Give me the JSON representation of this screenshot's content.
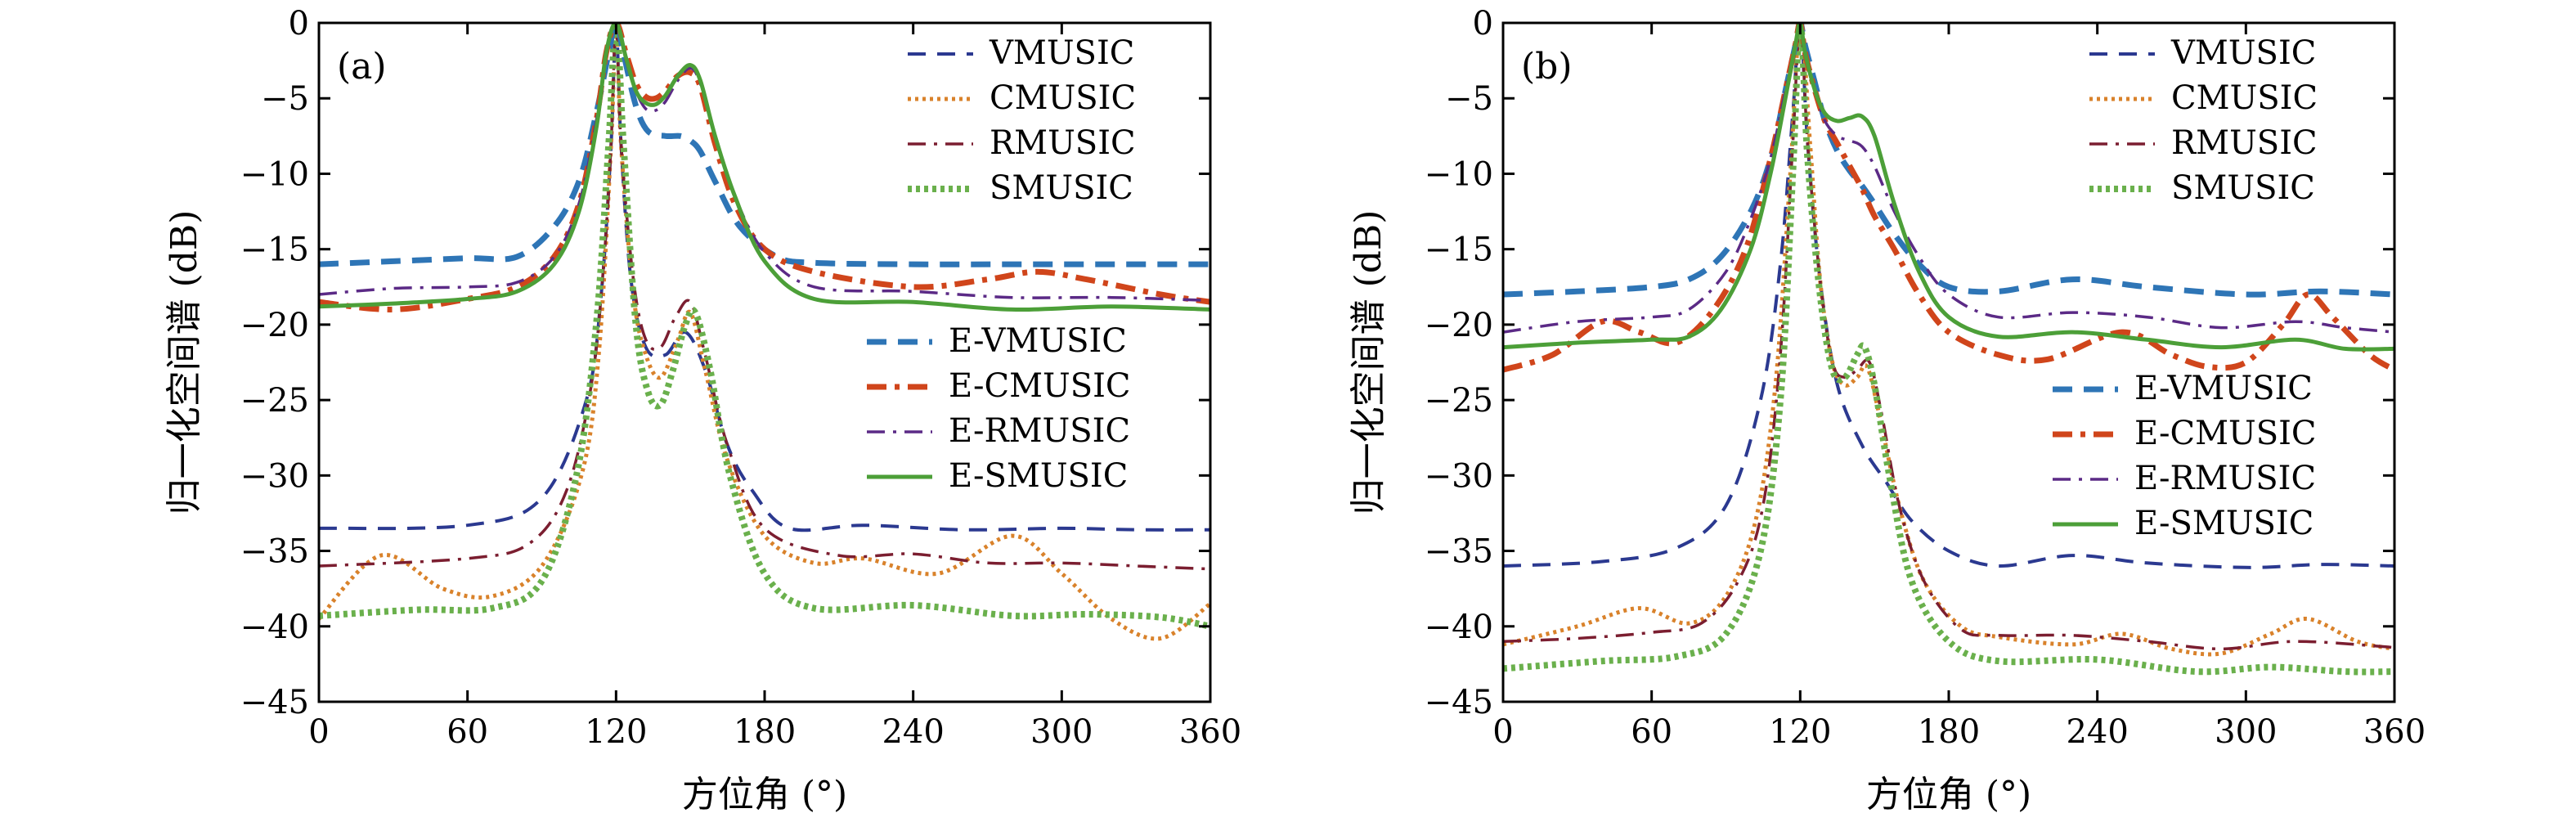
{
  "chart_data": [
    {
      "type": "line",
      "panel_label": "(a)",
      "xlabel": "方位角 (°)",
      "ylabel": "归一化空间谱 (dB)",
      "xlim": [
        0,
        360
      ],
      "ylim": [
        -45,
        0
      ],
      "xticks": [
        0,
        60,
        120,
        180,
        240,
        300,
        360
      ],
      "yticks": [
        0,
        -5,
        -10,
        -15,
        -20,
        -25,
        -30,
        -35,
        -40,
        -45
      ],
      "legends": [
        {
          "placement": "top-right",
          "entries": [
            "VMUSIC",
            "CMUSIC",
            "RMUSIC",
            "SMUSIC"
          ]
        },
        {
          "placement": "center-right",
          "entries": [
            "E-VMUSIC",
            "E-CMUSIC",
            "E-RMUSIC",
            "E-SMUSIC"
          ]
        }
      ],
      "series": [
        {
          "name": "VMUSIC",
          "color": "#2b3990",
          "style": "dashed-thin",
          "x": [
            0,
            60,
            90,
            108,
            114,
            118,
            120,
            122,
            126,
            132,
            140,
            148,
            156,
            165,
            175,
            190,
            220,
            260,
            300,
            330,
            360
          ],
          "y": [
            -33.5,
            -33.3,
            -31.5,
            -25,
            -18,
            -8,
            -0.2,
            -8,
            -17,
            -21.5,
            -22,
            -20.5,
            -23,
            -28,
            -31,
            -33.5,
            -33.3,
            -33.6,
            -33.5,
            -33.6,
            -33.6
          ]
        },
        {
          "name": "CMUSIC",
          "color": "#d9822b",
          "style": "dotted",
          "x": [
            0,
            25,
            50,
            70,
            90,
            106,
            113,
            118,
            120,
            122,
            127,
            132,
            138,
            145,
            150,
            156,
            165,
            180,
            200,
            220,
            250,
            280,
            300,
            320,
            340,
            360
          ],
          "y": [
            -39.5,
            -35.3,
            -37.5,
            -38,
            -36,
            -30,
            -22,
            -8,
            0,
            -8,
            -18,
            -22,
            -23.5,
            -21,
            -19.2,
            -23,
            -29,
            -34,
            -35.8,
            -35.5,
            -36.5,
            -34,
            -36.5,
            -39.5,
            -40.8,
            -38.5
          ]
        },
        {
          "name": "RMUSIC",
          "color": "#7b1e30",
          "style": "dashdot",
          "x": [
            0,
            60,
            85,
            100,
            110,
            115,
            118,
            120,
            122,
            127,
            132,
            138,
            144,
            150,
            156,
            165,
            180,
            210,
            240,
            270,
            300,
            330,
            360
          ],
          "y": [
            -36,
            -35.5,
            -34.5,
            -31,
            -24,
            -16,
            -8,
            0,
            -8,
            -17,
            -21,
            -21.5,
            -19.5,
            -18.5,
            -22,
            -28,
            -33.5,
            -35.3,
            -35.2,
            -35.8,
            -35.8,
            -36,
            -36.2
          ]
        },
        {
          "name": "SMUSIC",
          "color": "#6ab04c",
          "style": "dotted-thick",
          "x": [
            0,
            40,
            70,
            90,
            104,
            112,
            117,
            120,
            123,
            128,
            133,
            138,
            143,
            148,
            152,
            158,
            166,
            180,
            200,
            240,
            280,
            310,
            340,
            360
          ],
          "y": [
            -39.3,
            -38.9,
            -38.8,
            -37,
            -30,
            -20,
            -8,
            0,
            -8,
            -20,
            -24.5,
            -25.3,
            -23,
            -20,
            -19.2,
            -23,
            -30,
            -36.5,
            -38.8,
            -38.6,
            -39.3,
            -39.2,
            -39.4,
            -40
          ]
        },
        {
          "name": "E-VMUSIC",
          "color": "#2e75b6",
          "style": "dashed-thick",
          "x": [
            0,
            30,
            60,
            80,
            95,
            105,
            112,
            117,
            120,
            123,
            128,
            133,
            140,
            146,
            150,
            154,
            160,
            170,
            185,
            200,
            240,
            280,
            320,
            360
          ],
          "y": [
            -16,
            -15.8,
            -15.6,
            -15.5,
            -13.5,
            -10.5,
            -6,
            -2,
            0,
            -2,
            -5.5,
            -7.2,
            -7.5,
            -7.5,
            -7.8,
            -8.5,
            -10.5,
            -13.5,
            -15.5,
            -15.9,
            -16,
            -16,
            -16,
            -16
          ]
        },
        {
          "name": "E-CMUSIC",
          "color": "#d0451b",
          "style": "dashdot-thick",
          "x": [
            0,
            30,
            60,
            80,
            95,
            105,
            112,
            116,
            120,
            124,
            128,
            132,
            136,
            140,
            145,
            150,
            154,
            160,
            168,
            180,
            200,
            240,
            270,
            290,
            310,
            340,
            360
          ],
          "y": [
            -18.5,
            -19,
            -18.3,
            -17.5,
            -15.5,
            -12,
            -6.5,
            -2,
            0,
            -2,
            -4,
            -4.9,
            -5,
            -4.5,
            -3.5,
            -3.3,
            -4.2,
            -8,
            -12,
            -15,
            -16.5,
            -17.5,
            -17,
            -16.5,
            -17,
            -18,
            -18.5
          ]
        },
        {
          "name": "E-RMUSIC",
          "color": "#5b2a86",
          "style": "dashdot",
          "x": [
            0,
            30,
            60,
            80,
            95,
            105,
            112,
            116,
            120,
            124,
            128,
            132,
            136,
            140,
            145,
            150,
            154,
            160,
            168,
            180,
            200,
            240,
            280,
            320,
            360
          ],
          "y": [
            -18,
            -17.6,
            -17.5,
            -17.2,
            -15.5,
            -12,
            -6.5,
            -2,
            0,
            -2.5,
            -4.5,
            -5.7,
            -5.8,
            -5.2,
            -3.8,
            -3,
            -4,
            -7.5,
            -11.5,
            -15.2,
            -17.5,
            -17.8,
            -18.2,
            -18.2,
            -18.4
          ]
        },
        {
          "name": "E-SMUSIC",
          "color": "#4c9f38",
          "style": "solid",
          "x": [
            0,
            30,
            60,
            80,
            95,
            105,
            112,
            116,
            120,
            124,
            128,
            132,
            136,
            140,
            145,
            150,
            154,
            160,
            168,
            180,
            200,
            240,
            280,
            320,
            360
          ],
          "y": [
            -18.8,
            -18.6,
            -18.3,
            -17.8,
            -16,
            -12.5,
            -7,
            -2,
            0,
            -2.3,
            -4.5,
            -5.3,
            -5.4,
            -4.8,
            -3.5,
            -2.8,
            -3.8,
            -7.5,
            -11.5,
            -15.8,
            -18.3,
            -18.5,
            -19,
            -18.8,
            -19
          ]
        }
      ]
    },
    {
      "type": "line",
      "panel_label": "(b)",
      "xlabel": "方位角 (°)",
      "ylabel": "归一化空间谱 (dB)",
      "xlim": [
        0,
        360
      ],
      "ylim": [
        -45,
        0
      ],
      "xticks": [
        0,
        60,
        120,
        180,
        240,
        300,
        360
      ],
      "yticks": [
        0,
        -5,
        -10,
        -15,
        -20,
        -25,
        -30,
        -35,
        -40,
        -45
      ],
      "legends": [
        {
          "placement": "top-right",
          "entries": [
            "VMUSIC",
            "CMUSIC",
            "RMUSIC",
            "SMUSIC"
          ]
        },
        {
          "placement": "center-right",
          "entries": [
            "E-VMUSIC",
            "E-CMUSIC",
            "E-RMUSIC",
            "E-SMUSIC"
          ]
        }
      ],
      "series": [
        {
          "name": "VMUSIC",
          "color": "#2b3990",
          "style": "dashed-thin",
          "x": [
            0,
            40,
            70,
            90,
            104,
            112,
            117,
            120,
            123,
            128,
            135,
            145,
            155,
            165,
            180,
            200,
            230,
            260,
            300,
            330,
            360
          ],
          "y": [
            -36,
            -35.7,
            -34.8,
            -32,
            -25,
            -16,
            -6,
            0,
            -8,
            -17,
            -24,
            -28,
            -30.5,
            -33,
            -35,
            -36,
            -35.3,
            -35.8,
            -36.1,
            -35.9,
            -36
          ]
        },
        {
          "name": "CMUSIC",
          "color": "#d9822b",
          "style": "dotted",
          "x": [
            0,
            30,
            55,
            75,
            90,
            102,
            110,
            116,
            120,
            124,
            128,
            133,
            138,
            143,
            147,
            152,
            160,
            170,
            185,
            200,
            230,
            250,
            270,
            290,
            310,
            325,
            345,
            360
          ],
          "y": [
            -41.2,
            -40,
            -38.8,
            -39.8,
            -38,
            -33,
            -24,
            -10,
            0,
            -8,
            -17,
            -22.5,
            -24,
            -23.5,
            -22.8,
            -26,
            -32,
            -37,
            -40,
            -40.7,
            -41.2,
            -40.5,
            -41.5,
            -41.8,
            -40.5,
            -39.5,
            -41,
            -41.5
          ]
        },
        {
          "name": "RMUSIC",
          "color": "#7b1e30",
          "style": "dashdot",
          "x": [
            0,
            30,
            60,
            80,
            95,
            105,
            112,
            117,
            120,
            123,
            128,
            133,
            138,
            143,
            148,
            153,
            160,
            170,
            185,
            200,
            230,
            260,
            290,
            320,
            360
          ],
          "y": [
            -41,
            -40.8,
            -40.4,
            -39.8,
            -37,
            -32,
            -22,
            -8,
            0,
            -8,
            -17,
            -22.5,
            -23.5,
            -23,
            -22.5,
            -26,
            -32,
            -37,
            -40.2,
            -40.6,
            -40.6,
            -41,
            -41.5,
            -41,
            -41.4
          ]
        },
        {
          "name": "SMUSIC",
          "color": "#6ab04c",
          "style": "dotted-thick",
          "x": [
            0,
            40,
            70,
            90,
            104,
            112,
            117,
            120,
            123,
            128,
            133,
            138,
            143,
            146,
            150,
            156,
            165,
            180,
            200,
            240,
            280,
            310,
            340,
            360
          ],
          "y": [
            -42.8,
            -42.3,
            -42,
            -40.5,
            -35,
            -25,
            -10,
            0,
            -9,
            -18,
            -23,
            -23.5,
            -22,
            -21.5,
            -24,
            -30,
            -37,
            -41,
            -42.3,
            -42.2,
            -43,
            -42.7,
            -43,
            -43
          ]
        },
        {
          "name": "E-VMUSIC",
          "color": "#2e75b6",
          "style": "dashed-thick",
          "x": [
            0,
            30,
            60,
            75,
            88,
            100,
            108,
            114,
            118,
            120,
            122,
            126,
            130,
            135,
            140,
            145,
            150,
            158,
            168,
            180,
            200,
            230,
            260,
            300,
            330,
            360
          ],
          "y": [
            -18,
            -17.8,
            -17.5,
            -17,
            -15.5,
            -12.5,
            -9,
            -4.5,
            -1.5,
            0,
            -1.5,
            -4,
            -6.5,
            -8.5,
            -9.8,
            -10.8,
            -12,
            -14,
            -16,
            -17.5,
            -17.8,
            -17,
            -17.5,
            -18,
            -17.8,
            -18
          ]
        },
        {
          "name": "E-CMUSIC",
          "color": "#d0451b",
          "style": "dashdot-thick",
          "x": [
            0,
            20,
            40,
            55,
            70,
            85,
            98,
            108,
            114,
            118,
            120,
            122,
            126,
            130,
            135,
            140,
            145,
            150,
            158,
            168,
            180,
            200,
            220,
            250,
            270,
            285,
            300,
            315,
            325,
            335,
            350,
            360
          ],
          "y": [
            -23,
            -22,
            -19.8,
            -20.5,
            -21.2,
            -19,
            -15,
            -9,
            -4.5,
            -1.5,
            0,
            -2,
            -4.5,
            -6.5,
            -8,
            -9.5,
            -11,
            -12.8,
            -15,
            -18,
            -20.5,
            -22,
            -22.3,
            -20.5,
            -22,
            -22.8,
            -22.5,
            -20,
            -18,
            -19.5,
            -22,
            -23
          ]
        },
        {
          "name": "E-RMUSIC",
          "color": "#5b2a86",
          "style": "dashdot",
          "x": [
            0,
            30,
            60,
            75,
            90,
            100,
            108,
            114,
            118,
            120,
            122,
            126,
            130,
            135,
            140,
            145,
            150,
            158,
            168,
            180,
            200,
            230,
            260,
            290,
            320,
            340,
            360
          ],
          "y": [
            -20.5,
            -19.8,
            -19.5,
            -19,
            -16.5,
            -13,
            -9,
            -4.5,
            -1.5,
            0,
            -2,
            -4.5,
            -6.5,
            -7.5,
            -7.8,
            -8.2,
            -9.5,
            -12.5,
            -15.5,
            -18,
            -19.5,
            -19.2,
            -19.5,
            -20.2,
            -19.8,
            -20.2,
            -20.5
          ]
        },
        {
          "name": "E-SMUSIC",
          "color": "#4c9f38",
          "style": "solid",
          "x": [
            0,
            30,
            60,
            75,
            88,
            100,
            108,
            114,
            118,
            120,
            122,
            126,
            130,
            135,
            140,
            145,
            150,
            158,
            168,
            180,
            200,
            230,
            260,
            290,
            320,
            340,
            360
          ],
          "y": [
            -21.5,
            -21.2,
            -21,
            -20.8,
            -19,
            -15,
            -10,
            -5,
            -1.5,
            0,
            -2,
            -4.5,
            -6,
            -6.5,
            -6.3,
            -6.2,
            -7.5,
            -12,
            -16.5,
            -19.5,
            -20.8,
            -20.5,
            -21,
            -21.5,
            -21,
            -21.6,
            -21.6
          ]
        }
      ]
    }
  ]
}
